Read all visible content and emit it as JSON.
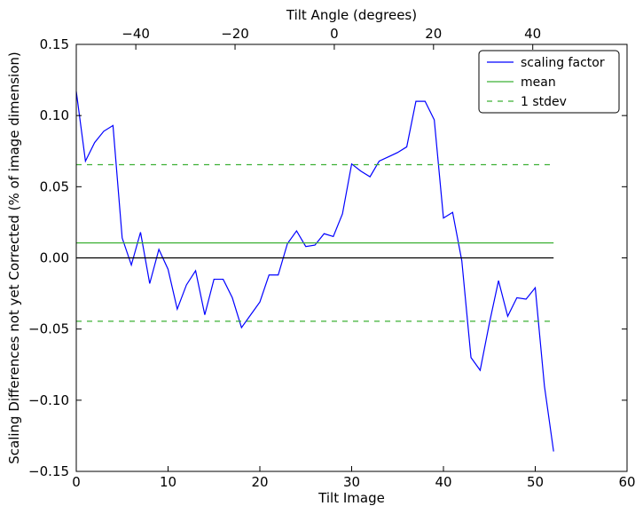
{
  "chart_data": {
    "type": "line",
    "title": "",
    "xlabel": "Tilt Image",
    "ylabel": "Scaling Differences not yet Corrected (% of image dimension)",
    "top_xlabel": "Tilt Angle (degrees)",
    "xlim": [
      0,
      60
    ],
    "ylim": [
      -0.15,
      0.15
    ],
    "top_xlim": [
      -52,
      59
    ],
    "x_ticks": [
      "0",
      "10",
      "20",
      "30",
      "40",
      "50",
      "60"
    ],
    "y_ticks": [
      "−0.15",
      "−0.10",
      "−0.05",
      "0.00",
      "0.05",
      "0.10",
      "0.15"
    ],
    "top_ticks": [
      "−40",
      "−20",
      "0",
      "20",
      "40"
    ],
    "x_tick_values": [
      0,
      10,
      20,
      30,
      40,
      50,
      60
    ],
    "y_tick_values": [
      -0.15,
      -0.1,
      -0.05,
      0.0,
      0.05,
      0.1,
      0.15
    ],
    "top_tick_values": [
      -40,
      -20,
      0,
      20,
      40
    ],
    "grid": false,
    "legend_position": "top-right",
    "series": [
      {
        "name": "scaling factor",
        "color": "#0000ff",
        "style": "solid",
        "x": [
          0,
          1,
          2,
          3,
          4,
          5,
          6,
          7,
          8,
          9,
          10,
          11,
          12,
          13,
          14,
          15,
          16,
          17,
          18,
          19,
          20,
          21,
          22,
          23,
          24,
          25,
          26,
          27,
          28,
          29,
          30,
          31,
          32,
          33,
          34,
          35,
          36,
          37,
          38,
          39,
          40,
          41,
          42,
          43,
          44,
          45,
          46,
          47,
          48,
          49,
          50,
          51,
          52
        ],
        "y": [
          0.117,
          0.068,
          0.081,
          0.089,
          0.093,
          0.014,
          -0.005,
          0.018,
          -0.018,
          0.006,
          -0.008,
          -0.036,
          -0.019,
          -0.009,
          -0.04,
          -0.015,
          -0.015,
          -0.028,
          -0.049,
          -0.04,
          -0.031,
          -0.012,
          -0.012,
          0.01,
          0.019,
          0.008,
          0.009,
          0.017,
          0.015,
          0.031,
          0.066,
          0.061,
          0.057,
          0.068,
          0.071,
          0.074,
          0.078,
          0.11,
          0.11,
          0.097,
          0.028,
          0.032,
          -0.002,
          -0.07,
          -0.079,
          -0.046,
          -0.016,
          -0.041,
          -0.028,
          -0.029,
          -0.021,
          -0.09,
          -0.136
        ]
      },
      {
        "name": "mean",
        "color": "#3cb034",
        "style": "solid",
        "x": [
          0,
          52
        ],
        "y": [
          0.0105,
          0.0105
        ]
      },
      {
        "name": "1 stdev",
        "color": "#3cb034",
        "style": "dashed",
        "x": [
          0,
          52
        ],
        "y": [
          0.0655,
          0.0655
        ]
      },
      {
        "name": "",
        "color": "#3cb034",
        "style": "dashed",
        "x": [
          0,
          52
        ],
        "y": [
          -0.0445,
          -0.0445
        ]
      },
      {
        "name": "",
        "color": "#000000",
        "style": "solid",
        "x": [
          0,
          52
        ],
        "y": [
          0.0,
          0.0
        ]
      }
    ],
    "legend": [
      "scaling factor",
      "mean",
      "1 stdev"
    ]
  }
}
